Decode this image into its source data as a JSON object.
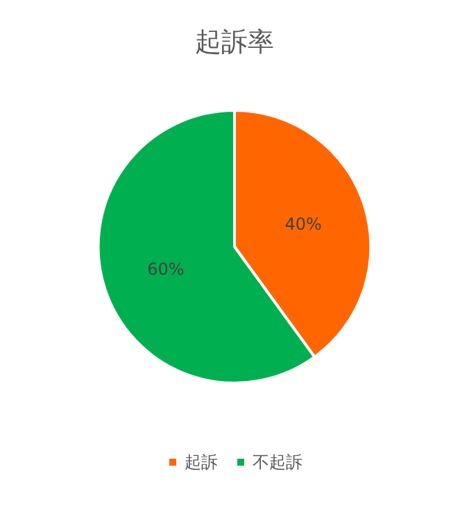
{
  "chart_data": {
    "type": "pie",
    "title": "起訴率",
    "categories": [
      "起訴",
      "不起訴"
    ],
    "values": [
      40,
      60
    ],
    "colors": [
      "#ff6600",
      "#00b050"
    ],
    "value_labels": [
      "40%",
      "60%"
    ],
    "legend": "bottom"
  }
}
